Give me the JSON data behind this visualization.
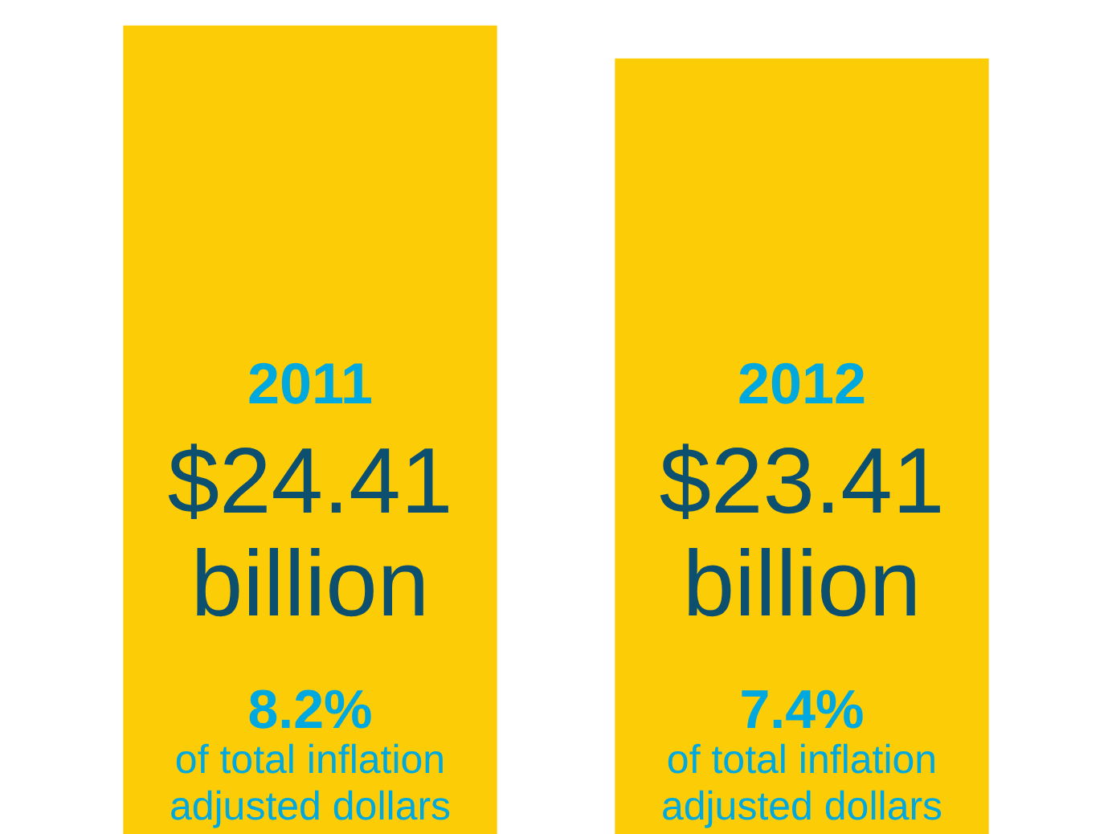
{
  "chart_data": {
    "type": "bar",
    "categories": [
      "2011",
      "2012"
    ],
    "values": [
      24.41,
      23.41
    ],
    "value_labels": [
      "$24.41 billion",
      "$23.41 billion"
    ],
    "color": "#fccc06",
    "annotations": [
      "8.2% of total inflation adjusted dollars",
      "7.4% of total inflation adjusted dollars"
    ]
  }
}
